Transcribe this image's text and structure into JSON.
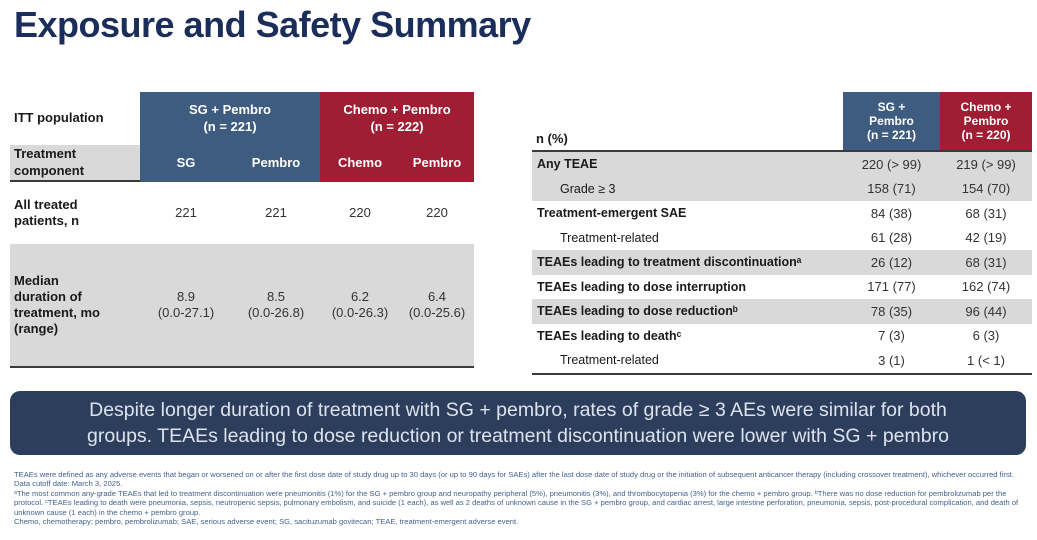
{
  "title": "Exposure and Safety Summary",
  "colors": {
    "title_navy": "#1b2d5b",
    "header_blue": "#3e5c80",
    "header_red": "#a01d33",
    "row_gray": "#d9d9d9",
    "banner_navy": "#2c3e5c",
    "banner_text": "#dde3ee",
    "footnote_blue": "#44618e"
  },
  "left_table": {
    "corner_label": "ITT population",
    "component_label": "Treatment\ncomponent",
    "groups": [
      {
        "label": "SG + Pembro\n(n = 221)",
        "color": "#3e5c80"
      },
      {
        "label": "Chemo + Pembro\n(n = 222)",
        "color": "#a01d33"
      }
    ],
    "subcolumns": [
      "SG",
      "Pembro",
      "Chemo",
      "Pembro"
    ],
    "rows": [
      {
        "label": "All treated\npatients, n",
        "values": [
          "221",
          "221",
          "220",
          "220"
        ]
      },
      {
        "label": "Median\nduration of\ntreatment, mo\n(range)",
        "values": [
          "8.9\n(0.0-27.1)",
          "8.5\n(0.0-26.8)",
          "6.2\n(0.0-26.3)",
          "6.4\n(0.0-25.6)"
        ]
      }
    ]
  },
  "right_table": {
    "corner_label": "n (%)",
    "col_headers": [
      {
        "label": "SG +\nPembro\n(n = 221)",
        "color": "#3e5c80"
      },
      {
        "label": "Chemo +\nPembro\n(n = 220)",
        "color": "#a01d33"
      }
    ],
    "rows": [
      {
        "label": "Any TEAE",
        "sg": "220 (> 99)",
        "chemo": "219 (> 99)"
      },
      {
        "label": "Grade ≥ 3",
        "sg": "158 (71)",
        "chemo": "154 (70)"
      },
      {
        "label": "Treatment-emergent SAE",
        "sg": "84 (38)",
        "chemo": "68 (31)"
      },
      {
        "label": "Treatment-related",
        "sg": "61 (28)",
        "chemo": "42 (19)"
      },
      {
        "label": "TEAEs leading to treatment discontinuationᵃ",
        "sg": "26 (12)",
        "chemo": "68 (31)"
      },
      {
        "label": "TEAEs leading to dose interruption",
        "sg": "171 (77)",
        "chemo": "162 (74)"
      },
      {
        "label": "TEAEs leading to dose reductionᵇ",
        "sg": "78 (35)",
        "chemo": "96 (44)"
      },
      {
        "label": "TEAEs leading to deathᶜ",
        "sg": "7 (3)",
        "chemo": "6 (3)"
      },
      {
        "label": "Treatment-related",
        "sg": "3 (1)",
        "chemo": "1 (< 1)"
      }
    ]
  },
  "banner": {
    "text": "Despite longer duration of treatment with SG + pembro, rates of grade ≥ 3 AEs were similar for both\ngroups. TEAEs leading to dose reduction or treatment discontinuation were lower with SG + pembro"
  },
  "footnotes": {
    "definition": "TEAEs were defined as any adverse events that began or worsened on or after the first dose date of study drug up to 30 days (or up to 90 days for SAEs) after the last dose date of study drug or the initiation of subsequent anticancer therapy (including crossover treatment), whichever occurred first. Data cutoff date: March 3, 2025.",
    "abc_notes": "ᵃThe most common any-grade TEAEs that led to treatment discontinuation were pneumonitis (1%) for the SG + pembro group and neuropathy peripheral (5%), pneumonitis (3%), and thrombocytopenia (3%) for the chemo + pembro group. ᵇThere was no dose reduction for pembrolizumab per the protocol. ᶜTEAEs leading to death were pneumonia, sepsis, neutropenic sepsis, pulmonary embolism, and suicide (1 each), as well as 2 deaths of unknown cause in the SG + pembro group, and cardiac arrest, large intestine perforation, pneumonia, sepsis, post-procedural complication, and death of unknown cause (1 each) in the chemo + pembro group.",
    "abbreviations": "Chemo, chemotherapy; pembro, pembrolizumab; SAE, serious adverse event; SG, sacituzumab govitecan; TEAE, treatment-emergent adverse event."
  }
}
